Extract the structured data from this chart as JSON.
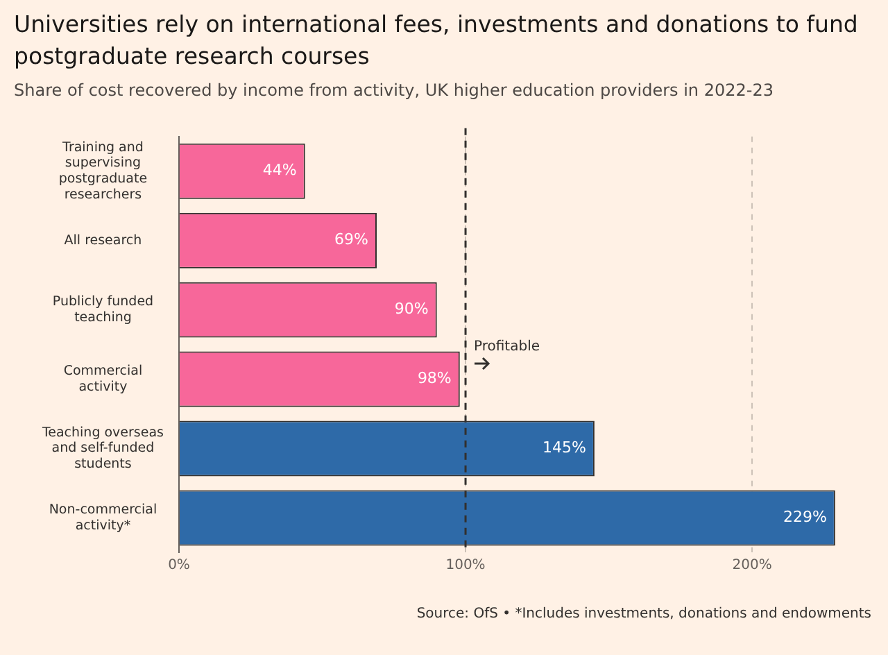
{
  "chart_data": {
    "type": "bar",
    "orientation": "horizontal",
    "title": "Universities rely on international fees, investments and donations to fund postgraduate research courses",
    "subtitle": "Share of cost recovered by income from activity, UK higher education providers in 2022-23",
    "categories": [
      "Training and supervising postgraduate researchers",
      "All research",
      "Publicly funded teaching",
      "Commercial activity",
      "Teaching overseas and self-funded students",
      "Non-commercial activity*"
    ],
    "values": [
      44,
      69,
      90,
      98,
      145,
      229
    ],
    "colors": [
      "#f7679a",
      "#f7679a",
      "#f7679a",
      "#f7679a",
      "#2e6aa8",
      "#2e6aa8"
    ],
    "value_labels": [
      "44%",
      "69%",
      "90%",
      "98%",
      "145%",
      "229%"
    ],
    "xlim": [
      0,
      230
    ],
    "xticks": [
      {
        "value": 0,
        "label": "0%"
      },
      {
        "value": 100,
        "label": "100%"
      },
      {
        "value": 200,
        "label": "200%"
      }
    ],
    "grid": "x",
    "ref_lines": [
      {
        "axis": "x",
        "value": 100,
        "label": "Profitable",
        "color": "#33302e",
        "line_style": "dashed"
      }
    ],
    "annotations": [
      "Source: OfS • *Includes investments, donations and endowments"
    ]
  }
}
